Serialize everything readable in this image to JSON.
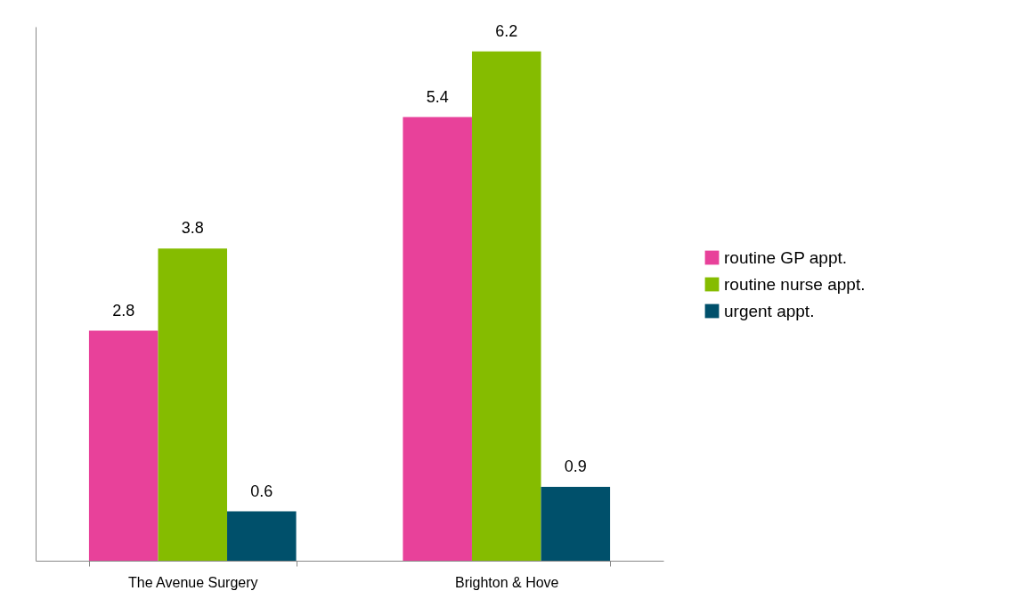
{
  "chart_data": {
    "type": "bar",
    "categories": [
      "The Avenue Surgery",
      "Brighton & Hove"
    ],
    "series": [
      {
        "name": "routine GP appt.",
        "color": "#e8419a",
        "values": [
          2.8,
          5.4
        ]
      },
      {
        "name": "routine nurse appt.",
        "color": "#85bc00",
        "values": [
          3.8,
          6.2
        ]
      },
      {
        "name": "urgent appt.",
        "color": "#00506b",
        "values": [
          0.6,
          0.9
        ]
      }
    ],
    "data_labels": true,
    "legend": "right",
    "grid": false,
    "tick_labels": "x"
  }
}
